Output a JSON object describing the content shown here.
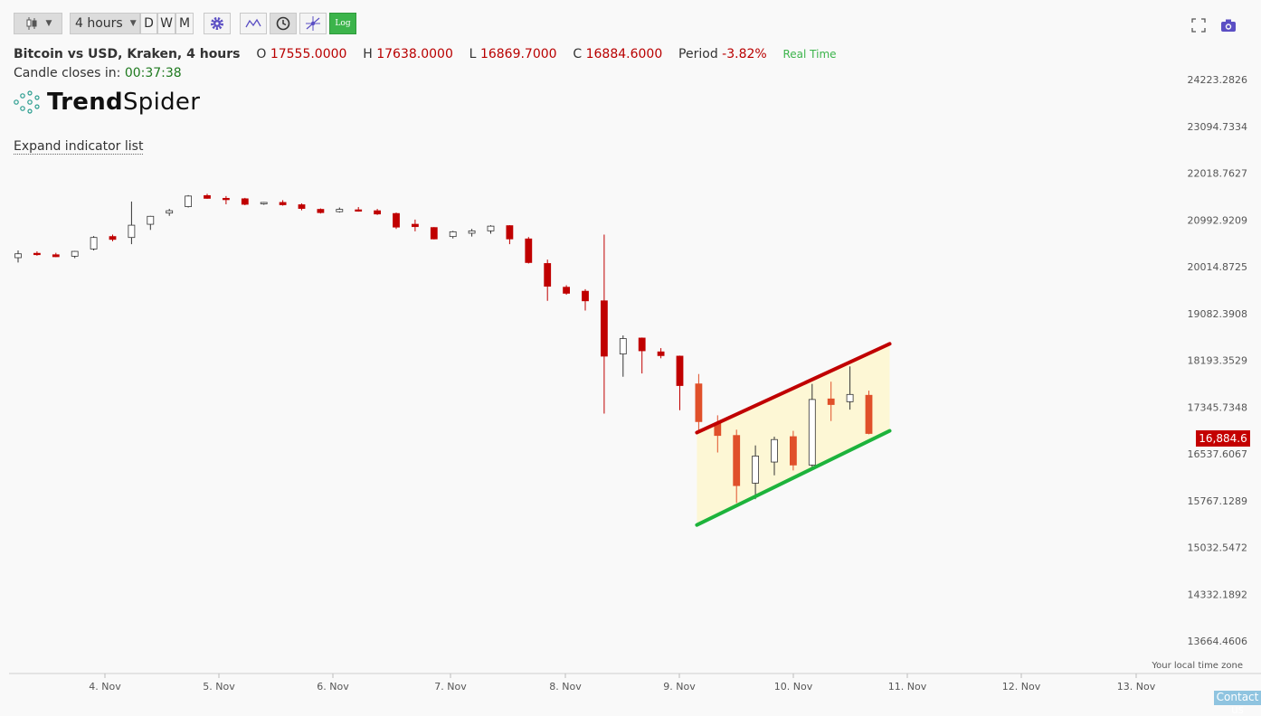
{
  "toolbar": {
    "timeframe": "4 hours",
    "d_label": "D",
    "w_label": "W",
    "m_label": "M",
    "log_label": "Log"
  },
  "header": {
    "symbol": "Bitcoin vs USD, Kraken, 4 hours",
    "o_label": "O",
    "o_value": "17555.0000",
    "h_label": "H",
    "h_value": "17638.0000",
    "l_label": "L",
    "l_value": "16869.7000",
    "c_label": "C",
    "c_value": "16884.6000",
    "period_label": "Period",
    "period_value": "-3.82%",
    "realtime": "Real Time",
    "closes_label": "Candle closes in:",
    "closes_value": "00:37:38"
  },
  "logo": {
    "bold": "Trend",
    "light": "Spider"
  },
  "expand_label": "Expand indicator list",
  "timezone_label": "Your local time zone",
  "contact_label": "Contact us",
  "last_price": "16,884.6",
  "colors": {
    "up": "#ffffff",
    "down": "#c00000",
    "channel_down": "#e0502a",
    "channel_top": "#c00000",
    "channel_bottom": "#1db33c",
    "channel_fill": "#fdf6d0"
  },
  "chart_data": {
    "type": "candlestick",
    "scale": "log",
    "y_ticks": [
      "24223.2826",
      "23094.7334",
      "22018.7627",
      "20992.9209",
      "20014.8725",
      "19082.3908",
      "18193.3529",
      "17345.7348",
      "16537.6067",
      "15767.1289",
      "15032.5472",
      "14332.1892",
      "13664.4606"
    ],
    "x_ticks": [
      "4. Nov",
      "5. Nov",
      "6. Nov",
      "7. Nov",
      "8. Nov",
      "9. Nov",
      "10. Nov",
      "11. Nov",
      "12. Nov",
      "13. Nov"
    ],
    "candles": [
      [
        20200,
        20350,
        20100,
        20280
      ],
      [
        20290,
        20330,
        20240,
        20270
      ],
      [
        20260,
        20300,
        20210,
        20220
      ],
      [
        20230,
        20340,
        20190,
        20330
      ],
      [
        20380,
        20650,
        20350,
        20620
      ],
      [
        20640,
        20680,
        20540,
        20580
      ],
      [
        20620,
        21390,
        20480,
        20880
      ],
      [
        20900,
        21080,
        20780,
        21070
      ],
      [
        21140,
        21230,
        21080,
        21190
      ],
      [
        21280,
        21530,
        21260,
        21510
      ],
      [
        21520,
        21560,
        21450,
        21460
      ],
      [
        21460,
        21510,
        21330,
        21450
      ],
      [
        21450,
        21470,
        21310,
        21330
      ],
      [
        21350,
        21380,
        21320,
        21370
      ],
      [
        21370,
        21420,
        21300,
        21320
      ],
      [
        21320,
        21350,
        21200,
        21240
      ],
      [
        21220,
        21240,
        21130,
        21150
      ],
      [
        21170,
        21260,
        21150,
        21220
      ],
      [
        21210,
        21270,
        21170,
        21200
      ],
      [
        21190,
        21230,
        21100,
        21120
      ],
      [
        21130,
        21150,
        20800,
        20840
      ],
      [
        20900,
        21000,
        20750,
        20850
      ],
      [
        20830,
        20840,
        20580,
        20590
      ],
      [
        20640,
        20760,
        20600,
        20740
      ],
      [
        20710,
        20800,
        20640,
        20760
      ],
      [
        20760,
        20880,
        20700,
        20860
      ],
      [
        20870,
        20880,
        20480,
        20590
      ],
      [
        20590,
        20630,
        20080,
        20100
      ],
      [
        20080,
        20160,
        19330,
        19620
      ],
      [
        19600,
        19640,
        19450,
        19480
      ],
      [
        19520,
        19560,
        19140,
        19330
      ],
      [
        19330,
        20680,
        17230,
        18270
      ],
      [
        18310,
        18660,
        17890,
        18600
      ],
      [
        18610,
        18620,
        17950,
        18370
      ],
      [
        18350,
        18420,
        18230,
        18280
      ],
      [
        18270,
        18280,
        17290,
        17730
      ],
      [
        17760,
        17940,
        16930,
        17090
      ],
      [
        17060,
        17200,
        16560,
        16850
      ],
      [
        16850,
        16950,
        15730,
        16010
      ],
      [
        16050,
        16680,
        15790,
        16500
      ],
      [
        16400,
        16830,
        16180,
        16780
      ],
      [
        16830,
        16930,
        16260,
        16350
      ],
      [
        16350,
        17760,
        16300,
        17480
      ],
      [
        17490,
        17800,
        17100,
        17390
      ],
      [
        17440,
        18080,
        17300,
        17570
      ],
      [
        17555,
        17638,
        16869.7,
        16884.6
      ]
    ],
    "channel": {
      "top_line": [
        16900,
        18500
      ],
      "bottom_line": [
        15380,
        16930
      ]
    },
    "last_price": 16884.6
  }
}
